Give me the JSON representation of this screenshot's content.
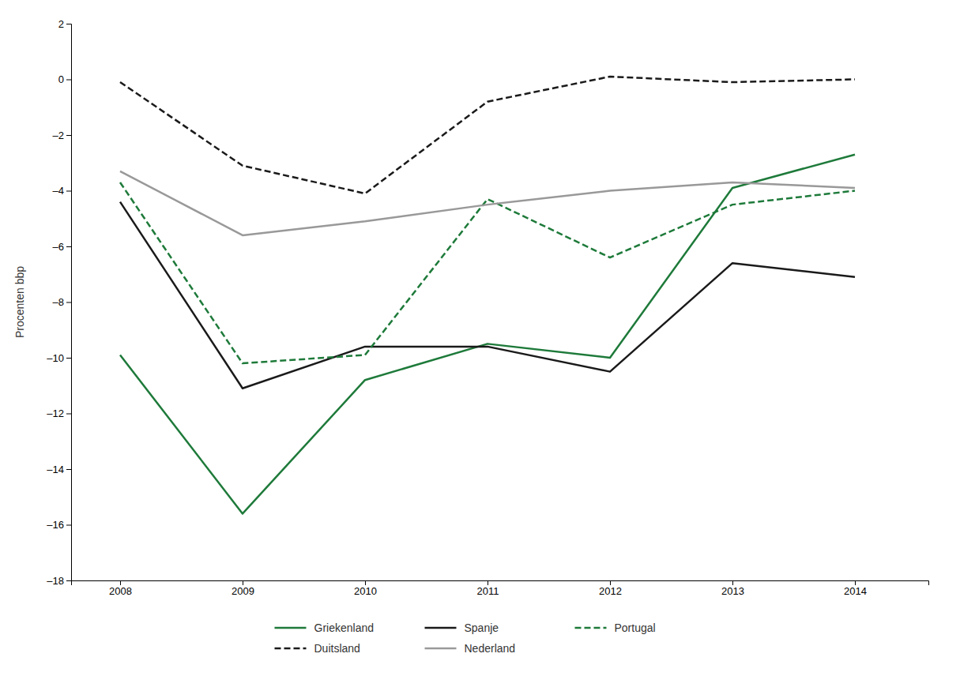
{
  "chart_data": {
    "type": "line",
    "ylabel": "Procenten bbp",
    "x": [
      2008,
      2009,
      2010,
      2011,
      2012,
      2013,
      2014
    ],
    "xlim": [
      2007.6,
      2014.6
    ],
    "xticks": [
      2008,
      2009,
      2010,
      2011,
      2012,
      2013,
      2014
    ],
    "ylim": [
      -18,
      2
    ],
    "yticks": [
      2,
      0,
      {
        "value": -2,
        "label": "–2"
      },
      {
        "value": -4,
        "label": "–4"
      },
      {
        "value": -6,
        "label": "–6"
      },
      {
        "value": -8,
        "label": "–8"
      },
      {
        "value": -10,
        "label": "–10"
      },
      {
        "value": -12,
        "label": "–12"
      },
      {
        "value": -14,
        "label": "–14"
      },
      {
        "value": -16,
        "label": "–16"
      },
      {
        "value": -18,
        "label": "–18"
      }
    ],
    "grid": false,
    "legend": "bottom",
    "series": [
      {
        "name": "Griekenland",
        "color": "#1e7a3a",
        "line_style": "solid",
        "values": [
          -9.9,
          -15.6,
          -10.8,
          -9.5,
          -10.0,
          -3.9,
          -2.7
        ]
      },
      {
        "name": "Spanje",
        "color": "#1a1a1a",
        "line_style": "solid",
        "values": [
          -4.4,
          -11.1,
          -9.6,
          -9.6,
          -10.5,
          -6.6,
          -7.1
        ]
      },
      {
        "name": "Portugal",
        "color": "#1e7a3a",
        "line_style": "dashed",
        "values": [
          -3.7,
          -10.2,
          -9.9,
          -4.3,
          -6.4,
          -4.5,
          -4.0
        ]
      },
      {
        "name": "Duitsland",
        "color": "#1a1a1a",
        "line_style": "dashed",
        "values": [
          -0.1,
          -3.1,
          -4.1,
          -0.8,
          0.1,
          -0.1,
          0.0
        ]
      },
      {
        "name": "Nederland",
        "color": "#999999",
        "line_style": "solid",
        "values": [
          -3.3,
          -5.6,
          -5.1,
          -4.5,
          -4.0,
          -3.7,
          -3.9
        ]
      }
    ]
  }
}
